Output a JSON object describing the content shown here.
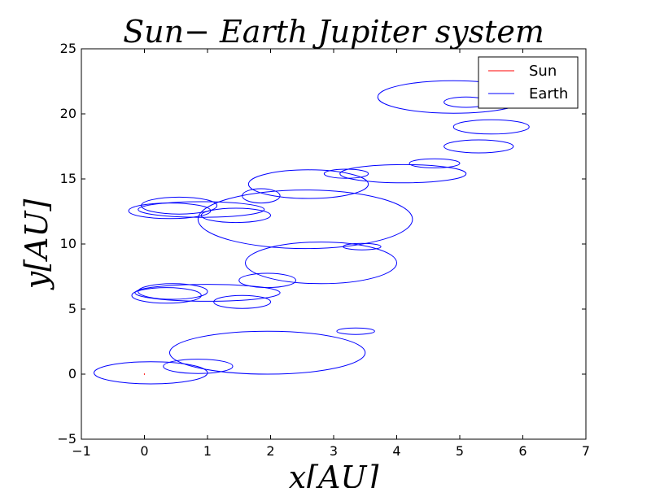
{
  "chart_data": {
    "type": "line",
    "title": "Sun− Earth Jupiter system",
    "xlabel": "x[AU]",
    "ylabel": "y[AU]",
    "xlim": [
      -1,
      7
    ],
    "ylim": [
      -5,
      25
    ],
    "xticks": [
      -1,
      0,
      1,
      2,
      3,
      4,
      5,
      6,
      7
    ],
    "yticks": [
      -5,
      0,
      5,
      10,
      15,
      20,
      25
    ],
    "xtick_labels": [
      "−1",
      "0",
      "1",
      "2",
      "3",
      "4",
      "5",
      "6",
      "7"
    ],
    "ytick_labels": [
      "−5",
      "0",
      "5",
      "10",
      "15",
      "20",
      "25"
    ],
    "grid": false,
    "legend_position": "top-right",
    "series": [
      {
        "name": "Sun",
        "color": "#ff0000",
        "x": [
          0.0,
          0.0
        ],
        "y": [
          -0.05,
          0.05
        ]
      },
      {
        "name": "Earth",
        "color": "#0000ff",
        "loops": [
          {
            "cx": 0.1,
            "cy": 0.1,
            "rx": 0.9,
            "ry": 0.85
          },
          {
            "cx": 0.85,
            "cy": 0.6,
            "rx": 0.55,
            "ry": 0.55
          },
          {
            "cx": 1.95,
            "cy": 1.65,
            "rx": 1.55,
            "ry": 1.65
          },
          {
            "cx": 3.35,
            "cy": 3.3,
            "rx": 0.3,
            "ry": 0.25
          },
          {
            "cx": 1.55,
            "cy": 5.55,
            "rx": 0.45,
            "ry": 0.5
          },
          {
            "cx": 0.35,
            "cy": 6.05,
            "rx": 0.55,
            "ry": 0.6
          },
          {
            "cx": 0.45,
            "cy": 6.35,
            "rx": 0.55,
            "ry": 0.6
          },
          {
            "cx": 1.0,
            "cy": 6.25,
            "rx": 1.15,
            "ry": 0.65
          },
          {
            "cx": 1.95,
            "cy": 7.2,
            "rx": 0.45,
            "ry": 0.55
          },
          {
            "cx": 2.8,
            "cy": 8.55,
            "rx": 1.2,
            "ry": 1.6
          },
          {
            "cx": 3.45,
            "cy": 9.8,
            "rx": 0.3,
            "ry": 0.25
          },
          {
            "cx": 1.45,
            "cy": 12.2,
            "rx": 0.55,
            "ry": 0.55
          },
          {
            "cx": 0.4,
            "cy": 12.55,
            "rx": 0.65,
            "ry": 0.6
          },
          {
            "cx": 0.55,
            "cy": 12.95,
            "rx": 0.6,
            "ry": 0.65
          },
          {
            "cx": 0.9,
            "cy": 12.65,
            "rx": 1.0,
            "ry": 0.6
          },
          {
            "cx": 1.85,
            "cy": 13.7,
            "rx": 0.3,
            "ry": 0.55
          },
          {
            "cx": 2.55,
            "cy": 11.9,
            "rx": 1.7,
            "ry": 2.25
          },
          {
            "cx": 2.6,
            "cy": 14.6,
            "rx": 0.95,
            "ry": 1.1
          },
          {
            "cx": 3.2,
            "cy": 15.4,
            "rx": 0.35,
            "ry": 0.35
          },
          {
            "cx": 4.1,
            "cy": 15.4,
            "rx": 1.0,
            "ry": 0.7
          },
          {
            "cx": 4.6,
            "cy": 16.2,
            "rx": 0.4,
            "ry": 0.35
          },
          {
            "cx": 5.3,
            "cy": 17.5,
            "rx": 0.55,
            "ry": 0.5
          },
          {
            "cx": 5.5,
            "cy": 19.0,
            "rx": 0.6,
            "ry": 0.55
          },
          {
            "cx": 5.1,
            "cy": 20.9,
            "rx": 0.35,
            "ry": 0.4
          },
          {
            "cx": 4.9,
            "cy": 21.3,
            "rx": 1.2,
            "ry": 1.25
          }
        ]
      }
    ]
  }
}
